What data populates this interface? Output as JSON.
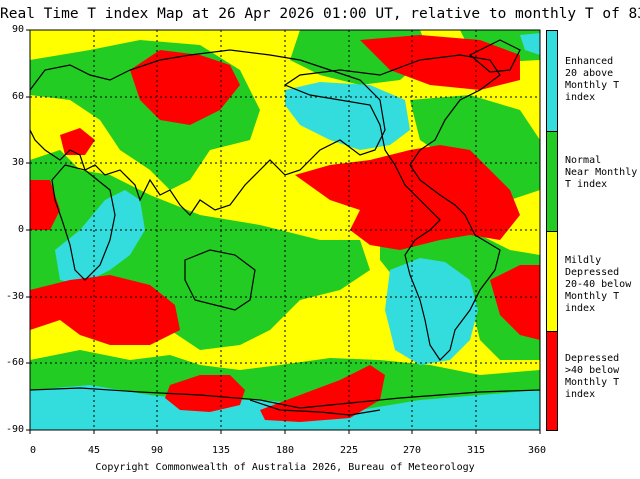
{
  "title": "Real Time T index Map at 26 Apr 2026 01:00 UT, relative to monthly T of 83",
  "credit": "Copyright Commonwealth of Australia 2026, Bureau of Meteorology",
  "lat_labels": [
    "90",
    "60",
    "30",
    "0",
    "-30",
    "-60",
    "-90"
  ],
  "lon_labels": [
    "0",
    "45",
    "90",
    "135",
    "180",
    "225",
    "270",
    "315",
    "360"
  ],
  "legend": [
    {
      "label": "Enhanced\n20 above\nMonthly T index",
      "color": "#33dddd"
    },
    {
      "label": "Normal\nNear Monthly\nT index",
      "color": "#22cc22"
    },
    {
      "label": "Mildly Depressed\n20-40 below\nMonthly T index",
      "color": "#ffff00"
    },
    {
      "label": "Depressed\n>40 below\nMonthly T index",
      "color": "#ff0000"
    }
  ]
}
